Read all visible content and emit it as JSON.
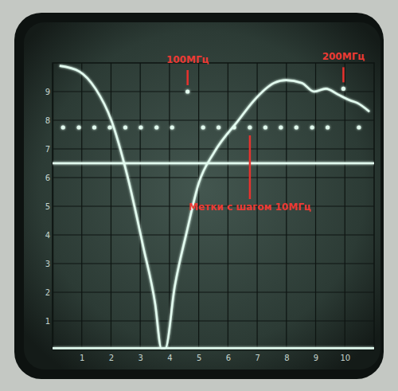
{
  "chart_data": {
    "type": "line",
    "xlim": [
      0,
      11
    ],
    "ylim": [
      0,
      10
    ],
    "xticks": [
      1,
      2,
      3,
      4,
      5,
      6,
      7,
      8,
      9,
      10
    ],
    "yticks": [
      1,
      2,
      3,
      4,
      5,
      6,
      7,
      8,
      9
    ],
    "grid": true,
    "tick_labels": true,
    "series": [
      {
        "type": "line",
        "color": "#e2fbef",
        "line_style": "solid",
        "x": [
          0.24,
          0.92,
          1.47,
          2.01,
          2.55,
          3.1,
          3.51,
          3.72,
          3.86,
          4.18,
          4.59,
          5.0,
          5.54,
          6.36,
          6.9,
          7.58,
          7.99,
          8.53,
          8.94,
          9.35,
          9.76,
          10.16,
          10.43,
          10.84
        ],
        "values": [
          9.9,
          9.7,
          9.1,
          8.0,
          6.1,
          3.6,
          1.6,
          0.05,
          0.05,
          2.2,
          4.1,
          5.8,
          6.9,
          8.0,
          8.7,
          9.3,
          9.4,
          9.3,
          9.0,
          9.1,
          8.9,
          8.7,
          8.6,
          8.3
        ]
      },
      {
        "type": "line",
        "color": "#e2fbef",
        "line_style": "solid",
        "x": [
          0,
          11
        ],
        "values": [
          6.5,
          6.5
        ]
      },
      {
        "type": "line",
        "color": "#e2fbef",
        "line_style": "solid",
        "x": [
          0,
          11
        ],
        "values": [
          0.05,
          0.05
        ]
      },
      {
        "type": "scatter",
        "color": "#e2fbef",
        "marker": "circle",
        "x": [
          0.36,
          0.9,
          1.43,
          1.96,
          2.49,
          3.02,
          3.56,
          4.09,
          4.62,
          5.15,
          5.68,
          6.21,
          6.75,
          7.28,
          7.81,
          8.34,
          8.88,
          9.41,
          9.95,
          10.48
        ],
        "values": [
          7.75,
          7.75,
          7.75,
          7.75,
          7.75,
          7.75,
          7.75,
          7.75,
          9.0,
          7.75,
          7.75,
          7.75,
          7.75,
          7.75,
          7.75,
          7.75,
          7.75,
          7.75,
          9.1,
          7.75
        ]
      }
    ],
    "annotations": [
      {
        "text": "100МГц",
        "x": 4.62,
        "y": 9.0
      },
      {
        "text": "200МГц",
        "x": 9.95,
        "y": 9.1
      },
      {
        "text": "Метки с шагом 10МГц",
        "x": 6.75,
        "y": 7.75
      }
    ]
  }
}
